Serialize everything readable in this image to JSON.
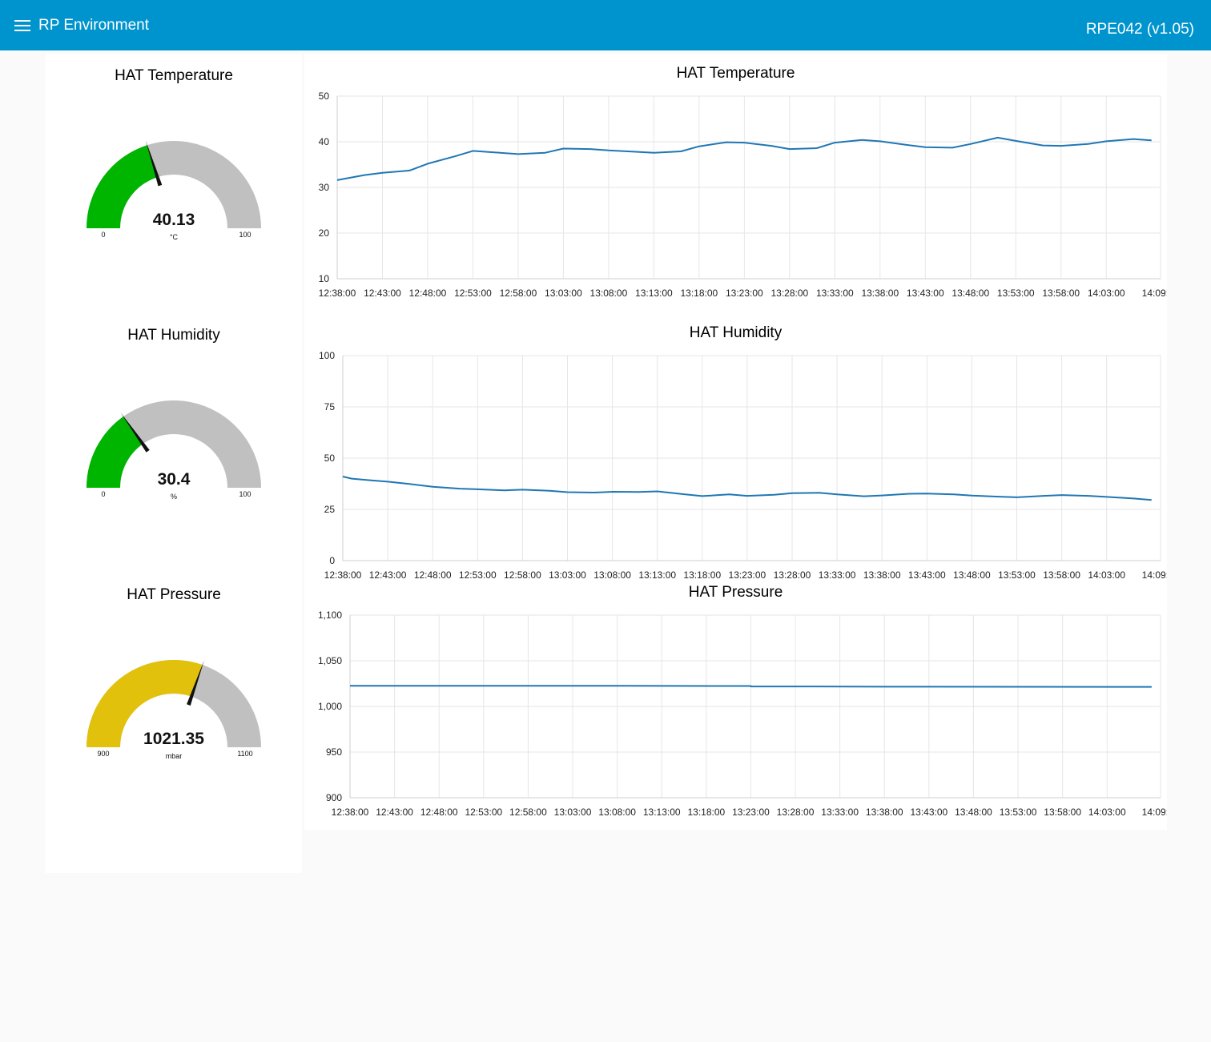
{
  "header": {
    "title": "RP Environment",
    "device": "RPE042 (v1.05)",
    "menu_icon": "hamburger-icon",
    "color": "#0094ce"
  },
  "gauges": [
    {
      "id": "temperature",
      "title": "HAT Temperature",
      "value": 40.13,
      "value_text": "40.13",
      "unit": "°C",
      "min": 0,
      "max": 100,
      "min_label": "0",
      "max_label": "100",
      "color": "#00b500"
    },
    {
      "id": "humidity",
      "title": "HAT Humidity",
      "value": 30.4,
      "value_text": "30.4",
      "unit": "%",
      "min": 0,
      "max": 100,
      "min_label": "0",
      "max_label": "100",
      "color": "#00b500"
    },
    {
      "id": "pressure",
      "title": "HAT Pressure",
      "value": 1021.35,
      "value_text": "1021.35",
      "unit": "mbar",
      "min": 900,
      "max": 1100,
      "min_label": "900",
      "max_label": "1100",
      "color": "#e2c10d"
    }
  ],
  "chart_data": [
    {
      "type": "line",
      "title": "HAT Temperature",
      "xlabel": "",
      "ylabel": "",
      "ylim": [
        10,
        50
      ],
      "yticks": [
        10,
        20,
        30,
        40,
        50
      ],
      "ytick_labels": [
        "10",
        "20",
        "30",
        "40",
        "50"
      ],
      "xlim": [
        "12:38:00",
        "14:09:00"
      ],
      "xtick_labels": [
        "12:38:00",
        "12:43:00",
        "12:48:00",
        "12:53:00",
        "12:58:00",
        "13:03:00",
        "13:08:00",
        "13:13:00",
        "13:18:00",
        "13:23:00",
        "13:28:00",
        "13:33:00",
        "13:38:00",
        "13:43:00",
        "13:48:00",
        "13:53:00",
        "13:58:00",
        "14:03:00",
        "14:09:00"
      ],
      "line_color": "#1f77b4",
      "grid": true,
      "series": [
        {
          "x": [
            "12:38:00",
            "12:41:00",
            "12:43:00",
            "12:46:00",
            "12:48:00",
            "12:51:00",
            "12:53:00",
            "12:56:00",
            "12:58:00",
            "13:01:00",
            "13:03:00",
            "13:06:00",
            "13:08:00",
            "13:11:00",
            "13:13:00",
            "13:16:00",
            "13:18:00",
            "13:21:00",
            "13:23:00",
            "13:26:00",
            "13:28:00",
            "13:31:00",
            "13:33:00",
            "13:36:00",
            "13:38:00",
            "13:41:00",
            "13:43:00",
            "13:46:00",
            "13:48:00",
            "13:51:00",
            "13:53:00",
            "13:56:00",
            "13:58:00",
            "14:01:00",
            "14:03:00",
            "14:06:00",
            "14:08:00"
          ],
          "y": [
            31.6,
            32.7,
            33.2,
            33.7,
            35.2,
            36.8,
            38.0,
            37.6,
            37.3,
            37.6,
            38.5,
            38.4,
            38.1,
            37.8,
            37.6,
            37.9,
            39.0,
            39.9,
            39.8,
            39.1,
            38.4,
            38.6,
            39.8,
            40.4,
            40.1,
            39.3,
            38.8,
            38.7,
            39.5,
            40.9,
            40.2,
            39.2,
            39.1,
            39.5,
            40.1,
            40.6,
            40.3
          ]
        }
      ]
    },
    {
      "type": "line",
      "title": "HAT Humidity",
      "xlabel": "",
      "ylabel": "",
      "ylim": [
        0,
        100
      ],
      "yticks": [
        0,
        25,
        50,
        75,
        100
      ],
      "ytick_labels": [
        "0",
        "25",
        "50",
        "75",
        "100"
      ],
      "xlim": [
        "12:38:00",
        "14:09:00"
      ],
      "xtick_labels": [
        "12:38:00",
        "12:43:00",
        "12:48:00",
        "12:53:00",
        "12:58:00",
        "13:03:00",
        "13:08:00",
        "13:13:00",
        "13:18:00",
        "13:23:00",
        "13:28:00",
        "13:33:00",
        "13:38:00",
        "13:43:00",
        "13:48:00",
        "13:53:00",
        "13:58:00",
        "14:03:00",
        "14:09:00"
      ],
      "line_color": "#1f77b4",
      "grid": true,
      "series": [
        {
          "x": [
            "12:38:00",
            "12:39:00",
            "12:41:00",
            "12:43:00",
            "12:45:00",
            "12:48:00",
            "12:51:00",
            "12:53:00",
            "12:56:00",
            "12:58:00",
            "13:01:00",
            "13:03:00",
            "13:06:00",
            "13:08:00",
            "13:11:00",
            "13:13:00",
            "13:16:00",
            "13:18:00",
            "13:21:00",
            "13:23:00",
            "13:26:00",
            "13:28:00",
            "13:31:00",
            "13:33:00",
            "13:36:00",
            "13:38:00",
            "13:41:00",
            "13:43:00",
            "13:46:00",
            "13:48:00",
            "13:51:00",
            "13:53:00",
            "13:56:00",
            "13:58:00",
            "14:01:00",
            "14:03:00",
            "14:06:00",
            "14:08:00"
          ],
          "y": [
            41.0,
            40.0,
            39.2,
            38.5,
            37.6,
            36.0,
            35.1,
            34.8,
            34.3,
            34.6,
            34.1,
            33.4,
            33.2,
            33.6,
            33.5,
            33.8,
            32.4,
            31.5,
            32.3,
            31.6,
            32.1,
            32.9,
            33.1,
            32.3,
            31.4,
            31.8,
            32.6,
            32.7,
            32.3,
            31.7,
            31.2,
            30.9,
            31.6,
            32.0,
            31.6,
            31.1,
            30.3,
            29.6
          ]
        }
      ]
    },
    {
      "type": "line",
      "title": "HAT Pressure",
      "xlabel": "",
      "ylabel": "",
      "ylim": [
        900,
        1100
      ],
      "yticks": [
        900,
        950,
        1000,
        1050,
        1100
      ],
      "ytick_labels": [
        "900",
        "950",
        "1,000",
        "1,050",
        "1,100"
      ],
      "xlim": [
        "12:38:00",
        "14:09:00"
      ],
      "xtick_labels": [
        "12:38:00",
        "12:43:00",
        "12:48:00",
        "12:53:00",
        "12:58:00",
        "13:03:00",
        "13:08:00",
        "13:13:00",
        "13:18:00",
        "13:23:00",
        "13:28:00",
        "13:33:00",
        "13:38:00",
        "13:43:00",
        "13:48:00",
        "13:53:00",
        "13:58:00",
        "14:03:00",
        "14:09:00"
      ],
      "line_color": "#1f77b4",
      "grid": true,
      "series": [
        {
          "x": [
            "12:38:00",
            "12:53:00",
            "13:08:00",
            "13:23:00",
            "13:23:00",
            "13:27:00",
            "13:38:00",
            "13:53:00",
            "14:08:00"
          ],
          "y": [
            1022.6,
            1022.6,
            1022.5,
            1022.4,
            1021.8,
            1021.8,
            1021.6,
            1021.5,
            1021.4
          ]
        }
      ]
    }
  ]
}
